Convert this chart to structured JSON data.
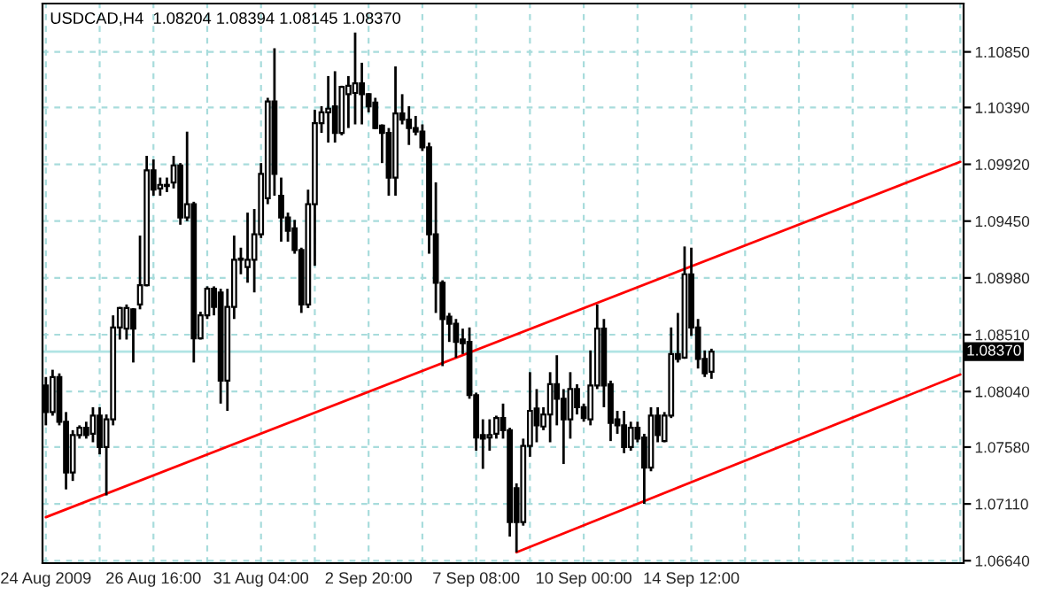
{
  "chart_data": {
    "type": "candlestick",
    "title": "USDCAD,H4  1.08204 1.08394 1.08145 1.08370",
    "categories": [
      "24 Aug 2009",
      null,
      null,
      null,
      null,
      null,
      null,
      null,
      null,
      null,
      null,
      null,
      null,
      null,
      null,
      null,
      "26 Aug 16:00",
      null,
      null,
      null,
      null,
      null,
      null,
      null,
      null,
      null,
      null,
      null,
      null,
      null,
      null,
      null,
      "31 Aug 04:00",
      null,
      null,
      null,
      null,
      null,
      null,
      null,
      null,
      null,
      null,
      null,
      null,
      null,
      null,
      null,
      "2 Sep 20:00",
      null,
      null,
      null,
      null,
      null,
      null,
      null,
      null,
      null,
      null,
      null,
      null,
      null,
      null,
      null,
      "7 Sep 08:00",
      null,
      null,
      null,
      null,
      null,
      null,
      null,
      null,
      null,
      null,
      null,
      null,
      null,
      null,
      null,
      "10 Sep 00:00",
      null,
      null,
      null,
      null,
      null,
      null,
      null,
      null,
      null,
      null,
      null,
      null,
      null,
      null,
      null,
      "14 Sep 12:00",
      null,
      null,
      null,
      null,
      null,
      null,
      null,
      null,
      null,
      null,
      null,
      null,
      null,
      null,
      null,
      null,
      null,
      null,
      null,
      null,
      null,
      null,
      null,
      null,
      null,
      null,
      null,
      null,
      null,
      null,
      null,
      null,
      null,
      null,
      null,
      null,
      null,
      null,
      null,
      null
    ],
    "ohlc": [
      [
        1.0809,
        1.0816,
        1.0776,
        1.0787
      ],
      [
        1.0787,
        1.0822,
        1.0784,
        1.0816
      ],
      [
        1.0816,
        1.0819,
        1.0776,
        1.0779
      ],
      [
        1.0779,
        1.0787,
        1.0723,
        1.0737
      ],
      [
        1.0737,
        1.0772,
        1.073,
        1.0768
      ],
      [
        1.0768,
        1.0776,
        1.0765,
        1.0774
      ],
      [
        1.0774,
        1.0779,
        1.0765,
        1.0768
      ],
      [
        1.0769,
        1.0791,
        1.0762,
        1.0784
      ],
      [
        1.0784,
        1.0791,
        1.0752,
        1.0758
      ],
      [
        1.0758,
        1.0785,
        1.0718,
        1.0781
      ],
      [
        1.0781,
        1.0867,
        1.0776,
        1.0857
      ],
      [
        1.0857,
        1.0874,
        1.0847,
        1.0873
      ],
      [
        1.0856,
        1.0876,
        1.0847,
        1.0873
      ],
      [
        1.0872,
        1.0873,
        1.0828,
        1.0856
      ],
      [
        1.0876,
        1.0933,
        1.0872,
        1.0892
      ],
      [
        1.0892,
        1.0999,
        1.0891,
        1.0987
      ],
      [
        1.0987,
        1.0996,
        1.0966,
        1.0971
      ],
      [
        1.0972,
        1.0981,
        1.0966,
        1.0975
      ],
      [
        1.0975,
        1.0981,
        1.0969,
        1.0974
      ],
      [
        1.0977,
        1.0999,
        1.0972,
        1.0991
      ],
      [
        1.0991,
        1.0993,
        1.0942,
        1.0948
      ],
      [
        1.0948,
        1.1019,
        1.0945,
        1.0959
      ],
      [
        1.0959,
        1.0961,
        1.0828,
        1.0848
      ],
      [
        1.0848,
        1.087,
        1.0847,
        1.0867
      ],
      [
        1.0867,
        1.0891,
        1.0864,
        1.0889
      ],
      [
        1.0889,
        1.0891,
        1.0867,
        1.0874
      ],
      [
        1.0886,
        1.0889,
        1.0794,
        1.0813
      ],
      [
        1.0813,
        1.0889,
        1.0788,
        1.0874
      ],
      [
        1.0874,
        1.0933,
        1.0864,
        1.0913
      ],
      [
        1.0914,
        1.0923,
        1.0901,
        1.0913
      ],
      [
        1.0907,
        1.0952,
        1.0894,
        1.0913
      ],
      [
        1.0913,
        1.0955,
        1.0886,
        1.0934
      ],
      [
        1.0934,
        1.0993,
        1.0931,
        1.0984
      ],
      [
        1.0964,
        1.1047,
        1.0959,
        1.1044
      ],
      [
        1.1044,
        1.1088,
        1.0966,
        1.0984
      ],
      [
        1.0966,
        1.0981,
        1.0928,
        1.0948
      ],
      [
        1.0948,
        1.0952,
        1.0928,
        1.0937
      ],
      [
        1.0939,
        1.0946,
        1.0918,
        1.0921
      ],
      [
        1.0921,
        1.0923,
        1.0869,
        1.0876
      ],
      [
        1.0876,
        1.0971,
        1.0873,
        1.0959
      ],
      [
        1.0959,
        1.1037,
        1.0908,
        1.1026
      ],
      [
        1.1026,
        1.104,
        1.1018,
        1.1035
      ],
      [
        1.1035,
        1.1065,
        1.101,
        1.1038
      ],
      [
        1.104,
        1.1069,
        1.101,
        1.1018
      ],
      [
        1.1018,
        1.1057,
        1.1016,
        1.1056
      ],
      [
        1.105,
        1.1065,
        1.1022,
        1.1057
      ],
      [
        1.1051,
        1.1101,
        1.1025,
        1.1059
      ],
      [
        1.1059,
        1.1076,
        1.1025,
        1.105
      ],
      [
        1.105,
        1.1051,
        1.1035,
        1.104
      ],
      [
        1.1043,
        1.1047,
        1.1021,
        1.1022
      ],
      [
        1.1024,
        1.1025,
        1.0993,
        1.1018
      ],
      [
        1.1018,
        1.1022,
        1.0966,
        1.0981
      ],
      [
        1.0981,
        1.1073,
        1.0966,
        1.1034
      ],
      [
        1.1034,
        1.105,
        1.1025,
        1.1029
      ],
      [
        1.1029,
        1.104,
        1.1008,
        1.1022
      ],
      [
        1.1022,
        1.1032,
        1.1016,
        1.1019
      ],
      [
        1.1019,
        1.1025,
        1.1003,
        1.1006
      ],
      [
        1.1006,
        1.101,
        1.0918,
        1.0934
      ],
      [
        1.0934,
        1.0977,
        1.0869,
        1.0894
      ],
      [
        1.0894,
        1.0896,
        1.0825,
        1.0864
      ],
      [
        1.0866,
        1.0869,
        1.0845,
        1.086
      ],
      [
        1.086,
        1.0864,
        1.0832,
        1.0845
      ],
      [
        1.0847,
        1.0856,
        1.0835,
        1.0844
      ],
      [
        1.0845,
        1.0857,
        1.0798,
        1.0801
      ],
      [
        1.0801,
        1.0803,
        1.0755,
        1.0766
      ],
      [
        1.0768,
        1.0781,
        1.074,
        1.0765
      ],
      [
        1.0766,
        1.0781,
        1.0755,
        1.0768
      ],
      [
        1.0769,
        1.0784,
        1.0765,
        1.0782
      ],
      [
        1.0782,
        1.0794,
        1.0765,
        1.0772
      ],
      [
        1.0772,
        1.0774,
        1.0684,
        1.0696
      ],
      [
        1.0724,
        1.0728,
        1.0671,
        1.0696
      ],
      [
        1.0696,
        1.0765,
        1.0693,
        1.0759
      ],
      [
        1.0759,
        1.082,
        1.075,
        1.0788
      ],
      [
        1.079,
        1.0806,
        1.0762,
        1.0776
      ],
      [
        1.0775,
        1.0791,
        1.0772,
        1.0785
      ],
      [
        1.0785,
        1.082,
        1.0762,
        1.081
      ],
      [
        1.081,
        1.0834,
        1.0776,
        1.0798
      ],
      [
        1.0798,
        1.0806,
        1.0744,
        1.0781
      ],
      [
        1.0781,
        1.082,
        1.0765,
        1.0806
      ],
      [
        1.0806,
        1.081,
        1.0785,
        1.0791
      ],
      [
        1.0791,
        1.0794,
        1.0779,
        1.0782
      ],
      [
        1.0781,
        1.0838,
        1.0776,
        1.0809
      ],
      [
        1.0809,
        1.0876,
        1.0806,
        1.0856
      ],
      [
        1.0856,
        1.0864,
        1.0791,
        1.0809
      ],
      [
        1.081,
        1.0813,
        1.0763,
        1.0778
      ],
      [
        1.0781,
        1.0788,
        1.0769,
        1.0776
      ],
      [
        1.0776,
        1.0788,
        1.0753,
        1.0758
      ],
      [
        1.0758,
        1.0779,
        1.0755,
        1.0774
      ],
      [
        1.0774,
        1.0779,
        1.0762,
        1.0765
      ],
      [
        1.0766,
        1.0769,
        1.0711,
        1.0741
      ],
      [
        1.0741,
        1.0791,
        1.0738,
        1.0784
      ],
      [
        1.0784,
        1.0791,
        1.0762,
        1.0768
      ],
      [
        1.0763,
        1.0787,
        1.0762,
        1.0784
      ],
      [
        1.0784,
        1.0857,
        1.0782,
        1.0835
      ],
      [
        1.0835,
        1.0869,
        1.0828,
        1.0831
      ],
      [
        1.0832,
        1.0924,
        1.0831,
        1.0901
      ],
      [
        1.0901,
        1.0923,
        1.085,
        1.0857
      ],
      [
        1.0857,
        1.0864,
        1.0823,
        1.0831
      ],
      [
        1.0831,
        1.0838,
        1.0816,
        1.0819
      ],
      [
        1.08204,
        1.08394,
        1.08145,
        1.0837
      ],
      null,
      null,
      null,
      null,
      null,
      null,
      null,
      null,
      null,
      null,
      null,
      null,
      null,
      null,
      null,
      null,
      null,
      null,
      null,
      null,
      null,
      null,
      null,
      null,
      null,
      null,
      null,
      null,
      null,
      null,
      null,
      null,
      null,
      null,
      null,
      null,
      null
    ],
    "series": [
      {
        "type": "line",
        "color": "#ff0000",
        "values": [
          1.07,
          null,
          null,
          null,
          null,
          null,
          null,
          null,
          null,
          null,
          null,
          null,
          null,
          null,
          null,
          null,
          null,
          null,
          null,
          null,
          null,
          null,
          null,
          null,
          null,
          null,
          null,
          null,
          null,
          null,
          null,
          null,
          null,
          null,
          null,
          null,
          null,
          null,
          null,
          null,
          null,
          null,
          null,
          null,
          null,
          null,
          null,
          null,
          null,
          null,
          null,
          null,
          null,
          null,
          null,
          null,
          null,
          null,
          null,
          null,
          null,
          null,
          null,
          null,
          null,
          null,
          null,
          null,
          null,
          null,
          null,
          null,
          null,
          null,
          null,
          null,
          null,
          null,
          null,
          null,
          null,
          null,
          null,
          null,
          null,
          null,
          null,
          null,
          null,
          null,
          null,
          null,
          null,
          null,
          null,
          null,
          null,
          null,
          null,
          null,
          null,
          null,
          null,
          null,
          null,
          null,
          null,
          null,
          null,
          null,
          null,
          null,
          null,
          null,
          null,
          null,
          null,
          null,
          null,
          null,
          null,
          null,
          null,
          null,
          null,
          null,
          null,
          null,
          null,
          null,
          null,
          null,
          null,
          null,
          null,
          null,
          1.0994
        ]
      },
      {
        "type": "line",
        "color": "#ff0000",
        "values": [
          null,
          null,
          null,
          null,
          null,
          null,
          null,
          null,
          null,
          null,
          null,
          null,
          null,
          null,
          null,
          null,
          null,
          null,
          null,
          null,
          null,
          null,
          null,
          null,
          null,
          null,
          null,
          null,
          null,
          null,
          null,
          null,
          null,
          null,
          null,
          null,
          null,
          null,
          null,
          null,
          null,
          null,
          null,
          null,
          null,
          null,
          null,
          null,
          null,
          null,
          null,
          null,
          null,
          null,
          null,
          null,
          null,
          null,
          null,
          null,
          null,
          null,
          null,
          null,
          null,
          null,
          null,
          null,
          null,
          null,
          1.0671,
          null,
          null,
          null,
          null,
          null,
          null,
          null,
          null,
          null,
          null,
          null,
          null,
          null,
          null,
          null,
          null,
          null,
          null,
          null,
          null,
          null,
          null,
          null,
          null,
          null,
          null,
          null,
          null,
          null,
          null,
          null,
          null,
          null,
          null,
          null,
          null,
          null,
          null,
          null,
          null,
          null,
          null,
          null,
          null,
          null,
          null,
          null,
          null,
          null,
          null,
          null,
          null,
          null,
          null,
          null,
          null,
          null,
          null,
          null,
          null,
          null,
          null,
          null,
          null,
          null,
          1.0818
        ]
      }
    ],
    "ylim": [
      1.0662,
      1.1125
    ],
    "yticks": [
      {
        "value": 1.0664,
        "label": "1.06640"
      },
      {
        "value": 1.0711,
        "label": "1.07110"
      },
      {
        "value": 1.0758,
        "label": "1.07580"
      },
      {
        "value": 1.0804,
        "label": "1.08040"
      },
      {
        "value": 1.0851,
        "label": "1.08510"
      },
      {
        "value": 1.0898,
        "label": "1.08980"
      },
      {
        "value": 1.0945,
        "label": "1.09450"
      },
      {
        "value": 1.0992,
        "label": "1.09920"
      },
      {
        "value": 1.1039,
        "label": "1.10390"
      },
      {
        "value": 1.1085,
        "label": "1.10850"
      }
    ],
    "ref_lines": [
      {
        "axis": "y",
        "value": 1.0837,
        "label": "1.08370",
        "color": "#b0e4e4",
        "line_style": "solid"
      }
    ],
    "grid": true,
    "legend": false
  }
}
